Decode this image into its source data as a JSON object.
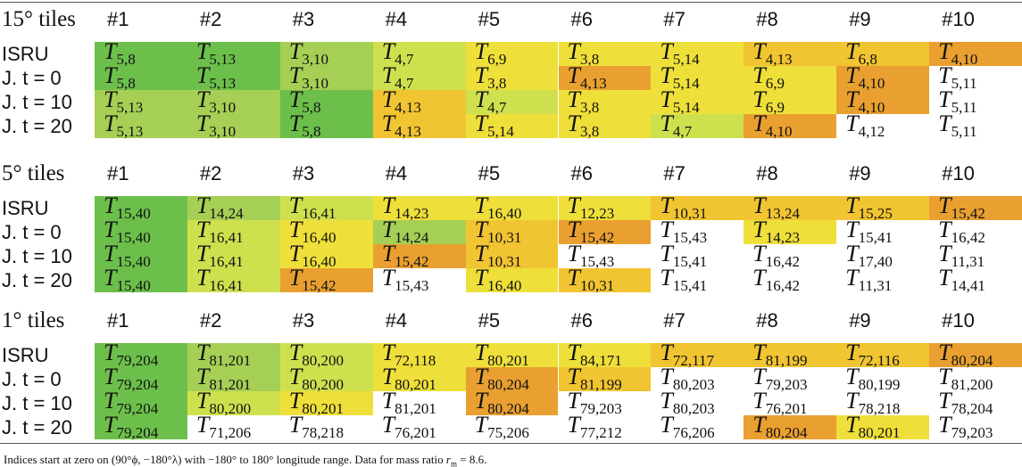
{
  "symbol": "T",
  "sections": [
    {
      "title": "15° tiles",
      "columns": [
        "#1",
        "#2",
        "#3",
        "#4",
        "#5",
        "#6",
        "#7",
        "#8",
        "#9",
        "#10"
      ],
      "rows": [
        {
          "label": "ISRU",
          "cells": [
            {
              "index": "5,8",
              "color": "#6dbf4b"
            },
            {
              "index": "5,13",
              "color": "#6dbf4b"
            },
            {
              "index": "3,10",
              "color": "#a6cf55"
            },
            {
              "index": "4,7",
              "color": "#cfe04e"
            },
            {
              "index": "6,9",
              "color": "#eedf3a"
            },
            {
              "index": "3,8",
              "color": "#eedf3a"
            },
            {
              "index": "5,14",
              "color": "#eedf3a"
            },
            {
              "index": "4,13",
              "color": "#f1c431"
            },
            {
              "index": "6,8",
              "color": "#f1c431"
            },
            {
              "index": "4,10",
              "color": "#e9a030"
            }
          ]
        },
        {
          "label": "J. t = 0",
          "cells": [
            {
              "index": "5,8",
              "color": "#6dbf4b"
            },
            {
              "index": "5,13",
              "color": "#6dbf4b"
            },
            {
              "index": "3,10",
              "color": "#a6cf55"
            },
            {
              "index": "4,7",
              "color": "#cfe04e"
            },
            {
              "index": "3,8",
              "color": "#eedf3a"
            },
            {
              "index": "4,13",
              "color": "#e9a030"
            },
            {
              "index": "5,14",
              "color": "#eedf3a"
            },
            {
              "index": "6,9",
              "color": "#eedf3a"
            },
            {
              "index": "4,10",
              "color": "#e9a030"
            },
            {
              "index": "5,11"
            }
          ]
        },
        {
          "label": "J. t = 10",
          "cells": [
            {
              "index": "5,13",
              "color": "#a6cf55"
            },
            {
              "index": "3,10",
              "color": "#a6cf55"
            },
            {
              "index": "5,8",
              "color": "#6dbf4b"
            },
            {
              "index": "4,13",
              "color": "#f1c431"
            },
            {
              "index": "4,7",
              "color": "#cfe04e"
            },
            {
              "index": "3,8",
              "color": "#eedf3a"
            },
            {
              "index": "5,14",
              "color": "#eedf3a"
            },
            {
              "index": "6,9",
              "color": "#eedf3a"
            },
            {
              "index": "4,10",
              "color": "#e9a030"
            },
            {
              "index": "5,11"
            }
          ]
        },
        {
          "label": "J. t = 20",
          "cells": [
            {
              "index": "5,13",
              "color": "#a6cf55"
            },
            {
              "index": "3,10",
              "color": "#a6cf55"
            },
            {
              "index": "5,8",
              "color": "#6dbf4b"
            },
            {
              "index": "4,13",
              "color": "#f1c431"
            },
            {
              "index": "5,14",
              "color": "#eedf3a"
            },
            {
              "index": "3,8",
              "color": "#eedf3a"
            },
            {
              "index": "4,7",
              "color": "#cfe04e"
            },
            {
              "index": "4,10",
              "color": "#e9a030"
            },
            {
              "index": "4,12"
            },
            {
              "index": "5,11"
            }
          ]
        }
      ]
    },
    {
      "title": "5° tiles",
      "columns": [
        "#1",
        "#2",
        "#3",
        "#4",
        "#5",
        "#6",
        "#7",
        "#8",
        "#9",
        "#10"
      ],
      "rows": [
        {
          "label": "ISRU",
          "cells": [
            {
              "index": "15,40",
              "color": "#6dbf4b"
            },
            {
              "index": "14,24",
              "color": "#a6cf55"
            },
            {
              "index": "16,41",
              "color": "#cfe04e"
            },
            {
              "index": "14,23",
              "color": "#eedf3a"
            },
            {
              "index": "16,40",
              "color": "#eedf3a"
            },
            {
              "index": "12,23",
              "color": "#eedf3a"
            },
            {
              "index": "10,31",
              "color": "#f1c431"
            },
            {
              "index": "13,24",
              "color": "#f1c431"
            },
            {
              "index": "15,25",
              "color": "#f1c431"
            },
            {
              "index": "15,42",
              "color": "#e9a030"
            }
          ]
        },
        {
          "label": "J. t = 0",
          "cells": [
            {
              "index": "15,40",
              "color": "#6dbf4b"
            },
            {
              "index": "16,41",
              "color": "#cfe04e"
            },
            {
              "index": "16,40",
              "color": "#eedf3a"
            },
            {
              "index": "14,24",
              "color": "#a6cf55"
            },
            {
              "index": "10,31",
              "color": "#f1c431"
            },
            {
              "index": "15,42",
              "color": "#e9a030"
            },
            {
              "index": "15,43"
            },
            {
              "index": "14,23",
              "color": "#eedf3a"
            },
            {
              "index": "15,41"
            },
            {
              "index": "16,42"
            }
          ]
        },
        {
          "label": "J. t = 10",
          "cells": [
            {
              "index": "15,40",
              "color": "#6dbf4b"
            },
            {
              "index": "16,41",
              "color": "#cfe04e"
            },
            {
              "index": "16,40",
              "color": "#eedf3a"
            },
            {
              "index": "15,42",
              "color": "#e9a030"
            },
            {
              "index": "10,31",
              "color": "#f1c431"
            },
            {
              "index": "15,43"
            },
            {
              "index": "15,41"
            },
            {
              "index": "16,42"
            },
            {
              "index": "17,40"
            },
            {
              "index": "11,31"
            }
          ]
        },
        {
          "label": "J. t = 20",
          "cells": [
            {
              "index": "15,40",
              "color": "#6dbf4b"
            },
            {
              "index": "16,41",
              "color": "#cfe04e"
            },
            {
              "index": "15,42",
              "color": "#e9a030"
            },
            {
              "index": "15,43"
            },
            {
              "index": "16,40",
              "color": "#eedf3a"
            },
            {
              "index": "10,31",
              "color": "#f1c431"
            },
            {
              "index": "15,41"
            },
            {
              "index": "16,42"
            },
            {
              "index": "11,31"
            },
            {
              "index": "14,41"
            }
          ]
        }
      ]
    },
    {
      "title": "1° tiles",
      "columns": [
        "#1",
        "#2",
        "#3",
        "#4",
        "#5",
        "#6",
        "#7",
        "#8",
        "#9",
        "#10"
      ],
      "rows": [
        {
          "label": "ISRU",
          "cells": [
            {
              "index": "79,204",
              "color": "#6dbf4b"
            },
            {
              "index": "81,201",
              "color": "#a6cf55"
            },
            {
              "index": "80,200",
              "color": "#cfe04e"
            },
            {
              "index": "72,118",
              "color": "#eedf3a"
            },
            {
              "index": "80,201",
              "color": "#eedf3a"
            },
            {
              "index": "84,171",
              "color": "#eedf3a"
            },
            {
              "index": "72,117",
              "color": "#f1c431"
            },
            {
              "index": "81,199",
              "color": "#f1c431"
            },
            {
              "index": "72,116",
              "color": "#f1c431"
            },
            {
              "index": "80,204",
              "color": "#e9a030"
            }
          ]
        },
        {
          "label": "J. t = 0",
          "cells": [
            {
              "index": "79,204",
              "color": "#6dbf4b"
            },
            {
              "index": "81,201",
              "color": "#a6cf55"
            },
            {
              "index": "80,200",
              "color": "#cfe04e"
            },
            {
              "index": "80,201",
              "color": "#eedf3a"
            },
            {
              "index": "80,204",
              "color": "#e9a030"
            },
            {
              "index": "81,199",
              "color": "#f1c431"
            },
            {
              "index": "80,203"
            },
            {
              "index": "79,203"
            },
            {
              "index": "80,199"
            },
            {
              "index": "81,200"
            }
          ]
        },
        {
          "label": "J. t = 10",
          "cells": [
            {
              "index": "79,204",
              "color": "#6dbf4b"
            },
            {
              "index": "80,200",
              "color": "#cfe04e"
            },
            {
              "index": "80,201",
              "color": "#eedf3a"
            },
            {
              "index": "81,201"
            },
            {
              "index": "80,204",
              "color": "#e9a030"
            },
            {
              "index": "79,203"
            },
            {
              "index": "80,203"
            },
            {
              "index": "76,201"
            },
            {
              "index": "78,218"
            },
            {
              "index": "78,204"
            }
          ]
        },
        {
          "label": "J. t = 20",
          "cells": [
            {
              "index": "79,204",
              "color": "#6dbf4b"
            },
            {
              "index": "71,206"
            },
            {
              "index": "78,218"
            },
            {
              "index": "76,201"
            },
            {
              "index": "75,206"
            },
            {
              "index": "77,212"
            },
            {
              "index": "76,206"
            },
            {
              "index": "80,204",
              "color": "#e9a030"
            },
            {
              "index": "80,201",
              "color": "#eedf3a"
            },
            {
              "index": "79,203"
            }
          ]
        }
      ]
    }
  ],
  "footnote": {
    "text_before": "Indices start at zero on (90°ϕ, −180°λ) with −180° to 180° longitude range. Data for mass ratio ",
    "symbol": "r",
    "subscript": "m",
    "text_after": " = 8.6."
  }
}
